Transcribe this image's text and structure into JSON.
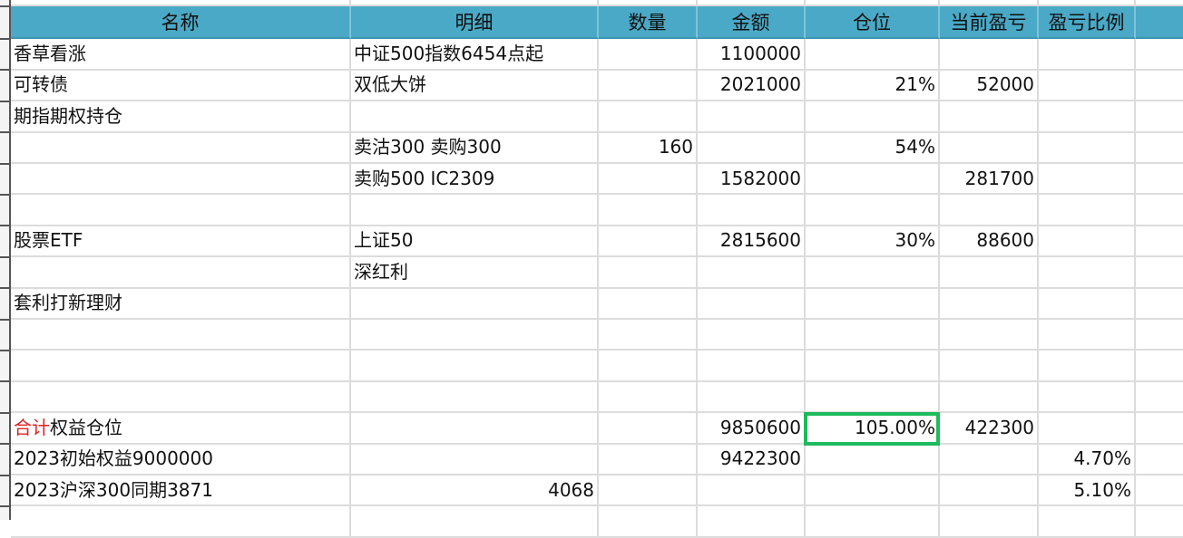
{
  "headers": [
    "名称",
    "明细",
    "数量",
    "金额",
    "仓位",
    "当前盈亏",
    "盈亏比例",
    ""
  ],
  "rows": [
    [
      "香草看涨",
      "中证500指数6454点起",
      "",
      "1100000",
      "",
      "",
      "",
      ""
    ],
    [
      "可转债",
      "双低大饼",
      "",
      "2021000",
      "21%",
      "52000",
      "",
      ""
    ],
    [
      "期指期权持仓",
      "",
      "",
      "",
      "",
      "",
      "",
      ""
    ],
    [
      "",
      "卖沽300 卖购300",
      "160",
      "",
      "54%",
      "",
      "",
      ""
    ],
    [
      "",
      "卖购500 IC2309",
      "",
      "1582000",
      "",
      "281700",
      "",
      ""
    ],
    [
      "",
      "",
      "",
      "",
      "",
      "",
      "",
      ""
    ],
    [
      "股票ETF",
      "上证50",
      "",
      "2815600",
      "30%",
      "88600",
      "",
      ""
    ],
    [
      "",
      "深红利",
      "",
      "",
      "",
      "",
      "",
      ""
    ],
    [
      "套利打新理财",
      "",
      "",
      "",
      "",
      "",
      "",
      ""
    ],
    [
      "",
      "",
      "",
      "",
      "",
      "",
      "",
      ""
    ],
    [
      "",
      "",
      "",
      "",
      "",
      "",
      "",
      ""
    ],
    [
      "",
      "",
      "",
      "",
      "",
      "",
      "",
      ""
    ],
    [
      {
        "parts": [
          {
            "text": "合计",
            "color": "#e02020"
          },
          {
            "text": "权益仓位"
          }
        ]
      },
      "",
      "",
      "9850600",
      "105.00%",
      "422300",
      "",
      ""
    ],
    [
      "2023初始权益9000000",
      "",
      "",
      "9422300",
      "",
      "",
      "4.70%",
      ""
    ],
    [
      "2023沪深300同期3871",
      "4068",
      "",
      "",
      "",
      "",
      "5.10%",
      ""
    ],
    [
      "",
      "",
      "",
      "",
      "",
      "",
      "",
      ""
    ]
  ],
  "numeric_columns": [
    2,
    3,
    4,
    5,
    6
  ],
  "selected_cell": {
    "row": 12,
    "col": 4,
    "value": "105.00%"
  },
  "colors": {
    "header": "#4aa9c6",
    "selection": "#1dbb5c",
    "highlight_text": "#e02020"
  }
}
